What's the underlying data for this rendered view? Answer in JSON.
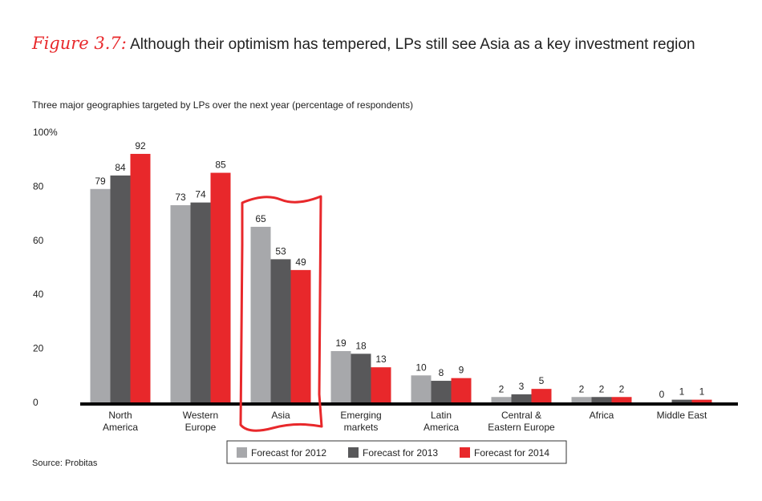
{
  "title_prefix": "Figure 3.7:",
  "title_text": "Although their optimism has tempered, LPs still see Asia as a key investment region",
  "subtitle": "Three major geographies targeted by LPs over the next year (percentage of respondents)",
  "source": "Source: Probitas",
  "colors": {
    "s2012": "#a7a8ab",
    "s2013": "#58585a",
    "s2014": "#e8282b",
    "highlight": "#e8282b"
  },
  "chart_data": {
    "type": "bar",
    "title": "Three major geographies targeted by LPs over the next year (percentage of respondents)",
    "ylabel": "percentage of respondents",
    "ylim": [
      0,
      100
    ],
    "yticks": [
      {
        "value": 0,
        "label": "0"
      },
      {
        "value": 20,
        "label": "20"
      },
      {
        "value": 40,
        "label": "40"
      },
      {
        "value": 60,
        "label": "60"
      },
      {
        "value": 80,
        "label": "80"
      },
      {
        "value": 100,
        "label": "100%"
      }
    ],
    "categories": [
      [
        "North",
        "America"
      ],
      [
        "Western",
        "Europe"
      ],
      [
        "Asia"
      ],
      [
        "Emerging",
        "markets"
      ],
      [
        "Latin",
        "America"
      ],
      [
        "Central &",
        "Eastern Europe"
      ],
      [
        "Africa"
      ],
      [
        "Middle East"
      ]
    ],
    "series": [
      {
        "name": "Forecast for 2012",
        "color": "#a7a8ab",
        "values": [
          79,
          73,
          65,
          19,
          10,
          2,
          2,
          0
        ]
      },
      {
        "name": "Forecast for 2013",
        "color": "#58585a",
        "values": [
          84,
          74,
          53,
          18,
          8,
          3,
          2,
          1
        ]
      },
      {
        "name": "Forecast for 2014",
        "color": "#e8282b",
        "values": [
          92,
          85,
          49,
          13,
          9,
          5,
          2,
          1
        ]
      }
    ],
    "highlight_category_index": 2,
    "legend_position": "bottom-center"
  }
}
